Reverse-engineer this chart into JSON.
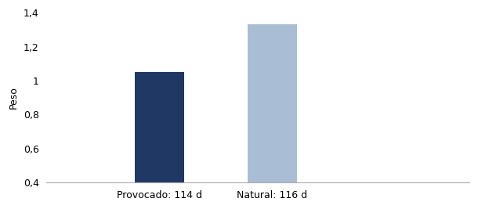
{
  "categories": [
    "Provocado: 114 d",
    "Natural: 116 d"
  ],
  "values": [
    1.05,
    1.33
  ],
  "bar_colors": [
    "#1F3864",
    "#A9BED4"
  ],
  "ylabel": "Peso",
  "ylim": [
    0.4,
    1.4
  ],
  "yticks": [
    0.4,
    0.6,
    0.8,
    1.0,
    1.2,
    1.4
  ],
  "ytick_labels": [
    "0,4",
    "0,6",
    "0,8",
    "1",
    "1,2",
    "1,4"
  ],
  "background_color": "#ffffff",
  "bar_width": 0.35,
  "tick_fontsize": 9,
  "label_fontsize": 9,
  "xlim": [
    -0.5,
    2.5
  ]
}
